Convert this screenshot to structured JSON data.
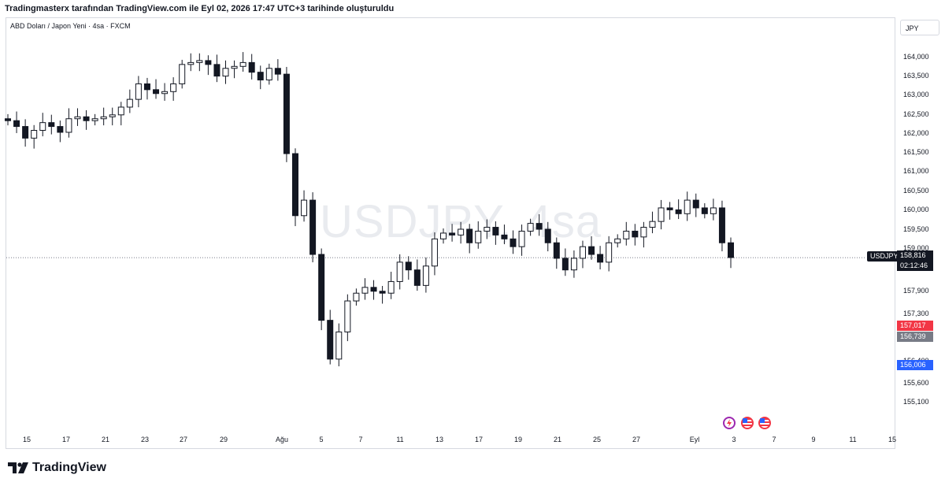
{
  "caption": "Tradingmasterx tarafından TradingView.com ile Eyl 02, 2026 17:47 UTC+3 tarihinde oluşturuldu",
  "symbol_line": "ABD Doları / Japon Yeni · 4sa · FXCM",
  "currency_button": "JPY",
  "watermark": "USDJPY, 4sa",
  "footer": {
    "brand": "TradingView"
  },
  "colors": {
    "up": "#131722",
    "down": "#131722",
    "red_badge": "#f23645",
    "grey_badge": "#787b86",
    "blue_badge": "#2962ff",
    "dark": "#131722"
  },
  "price_axis": {
    "ticks": [
      "164,000",
      "163,500",
      "163,000",
      "162,500",
      "162,000",
      "161,500",
      "161,000",
      "160,500",
      "160,000",
      "159,500",
      "159,000",
      "157,900",
      "157,300",
      "156,400",
      "155,600",
      "155,100"
    ],
    "current_symbol": "USDJPY",
    "current_price": "158,816",
    "countdown": "02:12:46",
    "badge_red": "157,017",
    "badge_grey": "156,739",
    "badge_blue": "156,006"
  },
  "time_axis": {
    "labels": [
      "15",
      "17",
      "21",
      "23",
      "27",
      "29",
      "Ağu",
      "5",
      "7",
      "11",
      "13",
      "17",
      "19",
      "21",
      "25",
      "27",
      "Eyl",
      "3",
      "7",
      "9",
      "11",
      "15"
    ]
  },
  "event_icons": [
    "lightning-event-icon",
    "us-flag-event-icon",
    "us-flag-event-icon"
  ],
  "chart_data": {
    "type": "candlestick",
    "title": "",
    "ylim": [
      154.9,
      164.4
    ],
    "current_price": 158.816,
    "series_closes": [
      162.35,
      162.2,
      161.9,
      162.1,
      162.3,
      162.2,
      162.05,
      162.4,
      162.45,
      162.35,
      162.4,
      162.45,
      162.5,
      162.7,
      162.9,
      163.3,
      163.15,
      163.05,
      163.1,
      163.3,
      163.8,
      163.85,
      163.9,
      163.8,
      163.5,
      163.7,
      163.75,
      163.85,
      163.6,
      163.4,
      163.7,
      163.55,
      161.5,
      159.9,
      160.3,
      158.9,
      157.2,
      156.2,
      156.9,
      157.7,
      157.9,
      158.05,
      157.95,
      157.9,
      158.2,
      158.7,
      158.5,
      158.1,
      158.6,
      159.3,
      159.45,
      159.4,
      159.55,
      159.2,
      159.5,
      159.6,
      159.4,
      159.3,
      159.1,
      159.5,
      159.7,
      159.55,
      159.2,
      158.8,
      158.5,
      158.8,
      159.1,
      158.9,
      158.7,
      159.2,
      159.3,
      159.5,
      159.35,
      159.6,
      159.75,
      160.1,
      160.05,
      159.95,
      160.3,
      160.1,
      159.95,
      160.1,
      159.2,
      158.82
    ]
  }
}
